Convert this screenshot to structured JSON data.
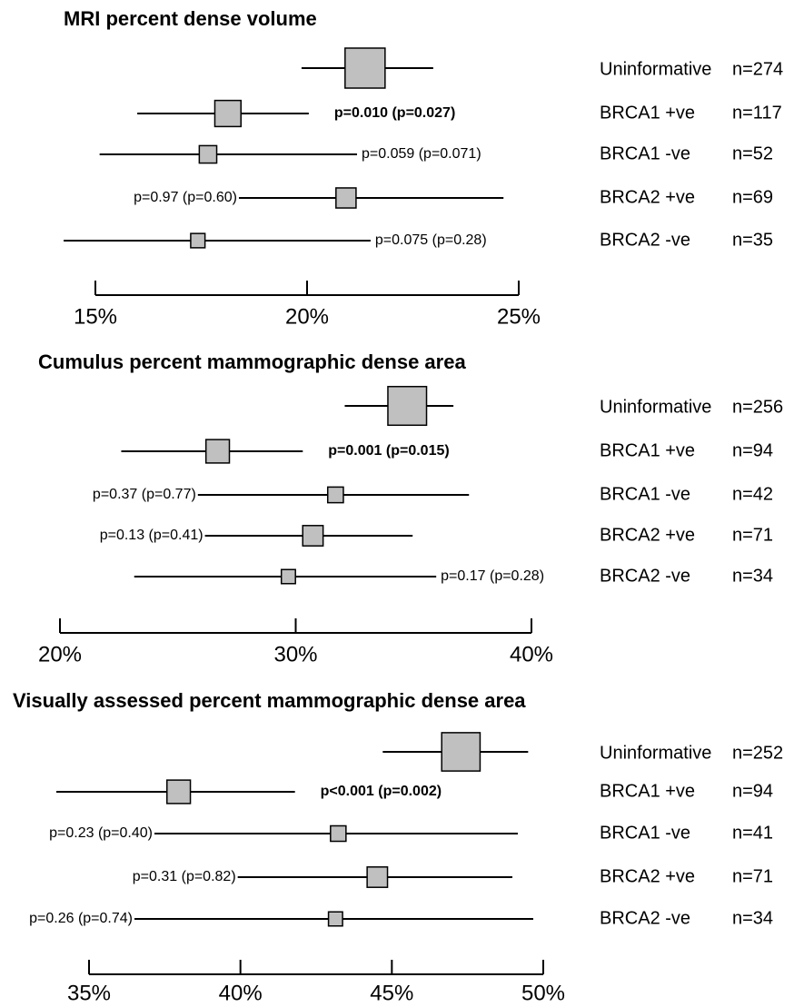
{
  "chart_data": [
    {
      "type": "forest",
      "title": "MRI percent dense volume",
      "categories": [
        "Uninformative",
        "BRCA1 +ve",
        "BRCA1 -ve",
        "BRCA2 +ve",
        "BRCA2 -ve"
      ],
      "values": [
        21.37,
        18.13,
        17.66,
        20.92,
        17.42
      ],
      "lower": [
        19.87,
        15.99,
        15.1,
        18.39,
        14.25
      ],
      "upper": [
        22.98,
        20.04,
        21.18,
        24.64,
        21.5
      ],
      "counts": [
        274,
        117,
        52,
        69,
        35
      ],
      "count_labels": [
        "n=274",
        "n=117",
        "n=52",
        "n=69",
        "n=35"
      ],
      "annotations": [
        null,
        "p=0.010 (p=0.027)",
        "p=0.059 (p=0.071)",
        "p=0.97 (p=0.60)",
        "p=0.075 (p=0.28)"
      ],
      "xlim": [
        15,
        25
      ],
      "xticks": [
        {
          "value": 15,
          "label": "15%"
        },
        {
          "value": 20,
          "label": "20%"
        },
        {
          "value": 25,
          "label": "25%"
        }
      ],
      "color": "#c0c0c0"
    },
    {
      "type": "forest",
      "title": "Cumulus percent mammographic dense area",
      "categories": [
        "Uninformative",
        "BRCA1 +ve",
        "BRCA1 -ve",
        "BRCA2 +ve",
        "BRCA2 -ve"
      ],
      "values": [
        34.73,
        26.69,
        31.69,
        30.73,
        29.69
      ],
      "lower": [
        32.08,
        22.6,
        25.85,
        26.15,
        23.15
      ],
      "upper": [
        36.69,
        30.3,
        37.35,
        34.96,
        35.96
      ],
      "counts": [
        256,
        94,
        42,
        71,
        34
      ],
      "count_labels": [
        "n=256",
        "n=94",
        "n=42",
        "n=71",
        "n=34"
      ],
      "annotations": [
        null,
        "p=0.001 (p=0.015)",
        "p=0.37 (p=0.77)",
        "p=0.13 (p=0.41)",
        "p=0.17  (p=0.28)"
      ],
      "xlim": [
        20,
        40
      ],
      "xticks": [
        {
          "value": 20,
          "label": "20%"
        },
        {
          "value": 30,
          "label": "30%"
        },
        {
          "value": 40,
          "label": "40%"
        }
      ],
      "color": "#c0c0c0"
    },
    {
      "type": "forest",
      "title": "Visually assessed percent mammographic dense area",
      "categories": [
        "Uninformative",
        "BRCA1 +ve",
        "BRCA1 -ve",
        "BRCA2 +ve",
        "BRCA2 -ve"
      ],
      "values": [
        47.28,
        37.96,
        43.23,
        44.52,
        43.14
      ],
      "lower": [
        44.7,
        33.92,
        37.16,
        39.91,
        36.5
      ],
      "upper": [
        49.5,
        41.8,
        49.16,
        48.98,
        49.67
      ],
      "counts": [
        252,
        94,
        41,
        71,
        34
      ],
      "count_labels": [
        "n=252",
        "n=94",
        "n=41",
        "n=71",
        "n=34"
      ],
      "annotations": [
        null,
        "p<0.001 (p=0.002)",
        "p=0.23 (p=0.40)",
        "p=0.31 (p=0.82)",
        "p=0.26 (p=0.74)"
      ],
      "xlim": [
        35,
        50
      ],
      "xticks": [
        {
          "value": 35,
          "label": "35%"
        },
        {
          "value": 40,
          "label": "40%"
        },
        {
          "value": 45,
          "label": "45%"
        },
        {
          "value": 50,
          "label": "50%"
        }
      ],
      "color": "#c0c0c0"
    }
  ]
}
